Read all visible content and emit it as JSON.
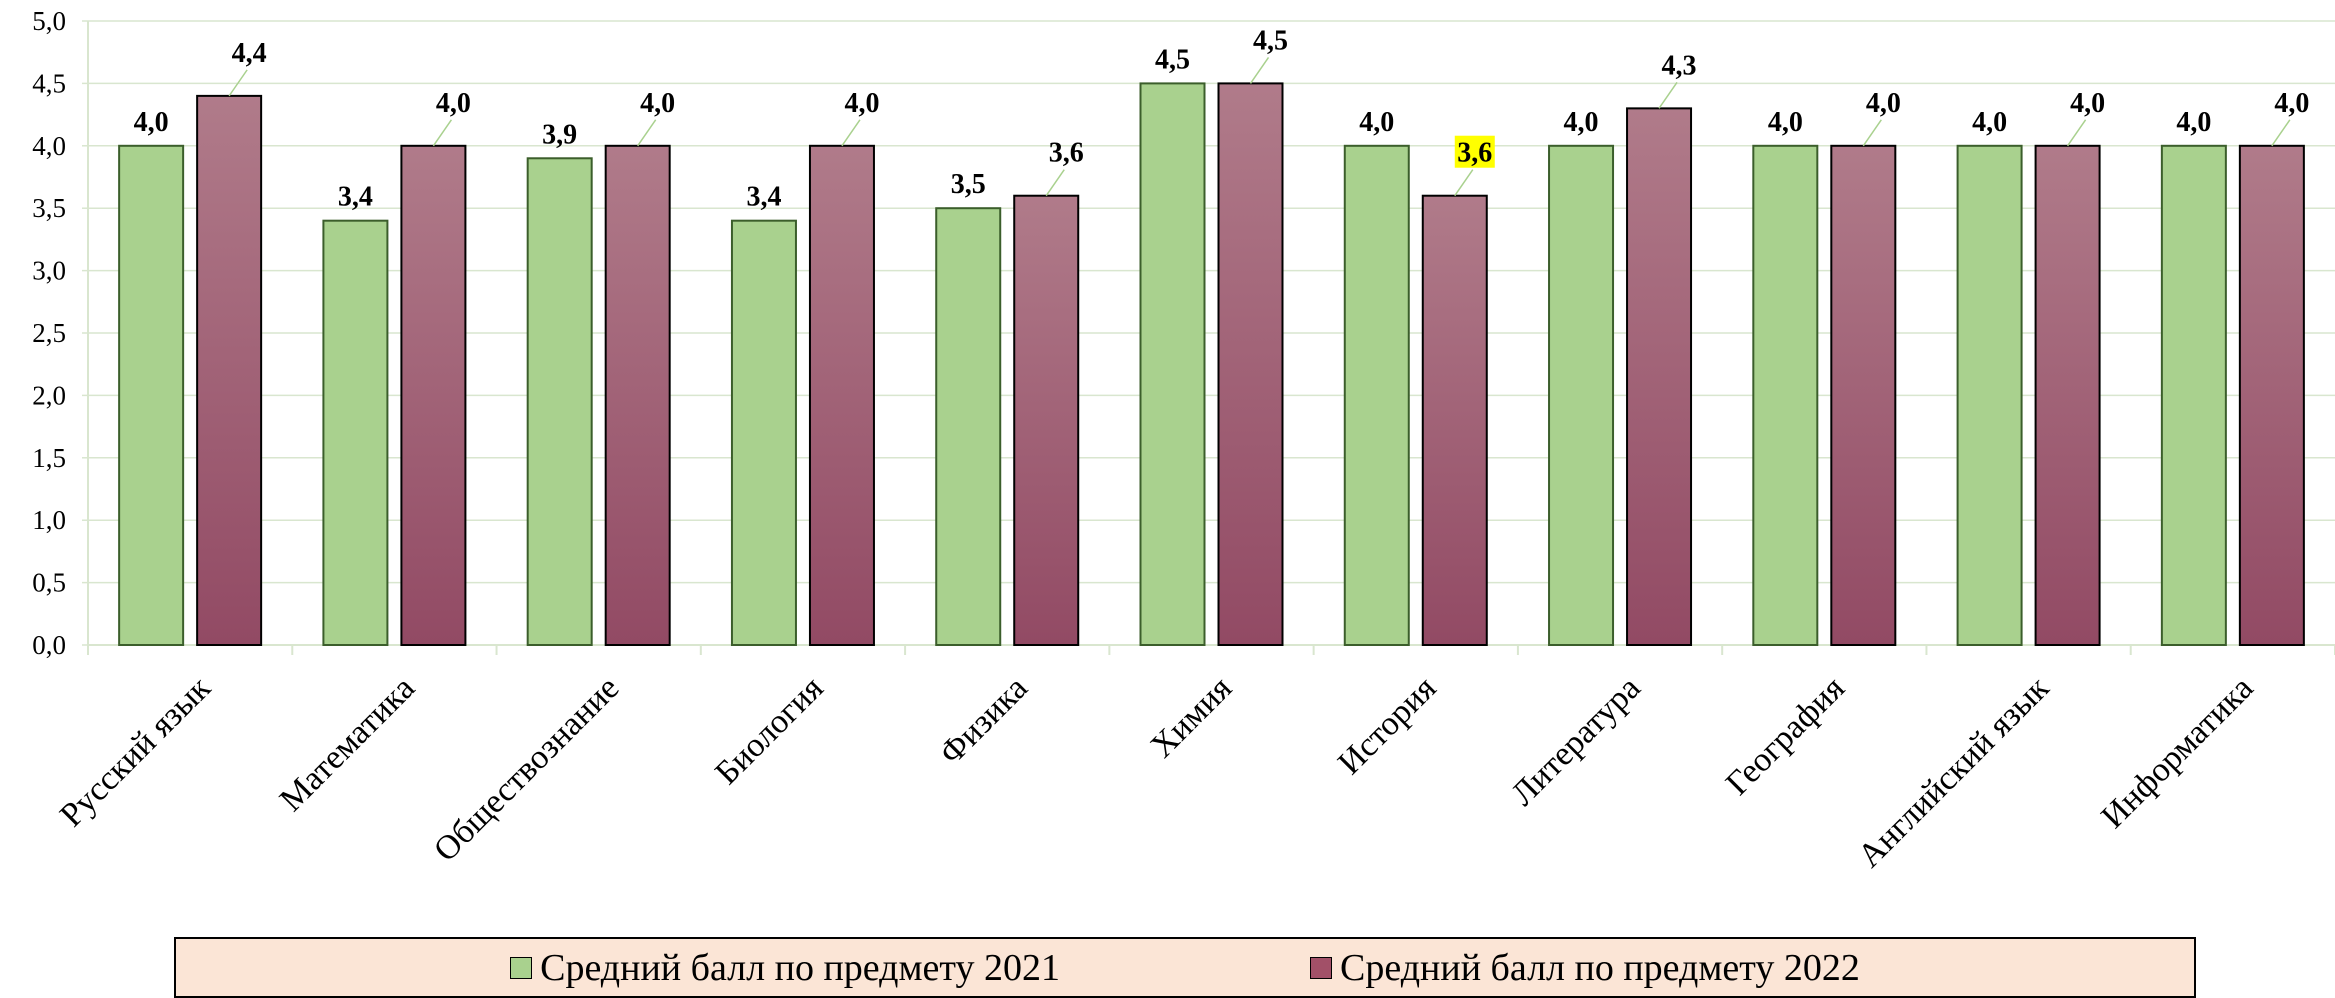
{
  "chart_data": {
    "type": "bar",
    "categories": [
      "Русский язык",
      "Математика",
      "Обществознание",
      "Биология",
      "Физика",
      "Химия",
      "История",
      "Литература",
      "География",
      "Английский язык",
      "Информатика"
    ],
    "series": [
      {
        "name": "Средний балл  по предмету 2021",
        "values": [
          4.0,
          3.4,
          3.9,
          3.4,
          3.5,
          4.5,
          4.0,
          4.0,
          4.0,
          4.0,
          4.0
        ],
        "color": "#a9d18e"
      },
      {
        "name": "Средний балл  по предмету 2022",
        "values": [
          4.4,
          4.0,
          4.0,
          4.0,
          3.6,
          4.5,
          3.6,
          4.3,
          4.0,
          4.0,
          4.0
        ],
        "color": "#a25068"
      }
    ],
    "data_labels": [
      [
        "4,0",
        "3,4",
        "3,9",
        "3,4",
        "3,5",
        "4,5",
        "4,0",
        "4,0",
        "4,0",
        "4,0",
        "4,0"
      ],
      [
        "4,4",
        "4,0",
        "4,0",
        "4,0",
        "3,6",
        "4,5",
        "3,6",
        "4,3",
        "4,0",
        "4,0",
        "4,0"
      ]
    ],
    "highlighted_label": {
      "series": 1,
      "category": 6,
      "color": "#ffff00"
    },
    "ylim": [
      0,
      5
    ],
    "yticks": [
      "0,0",
      "0,5",
      "1,0",
      "1,5",
      "2,0",
      "2,5",
      "3,0",
      "3,5",
      "4,0",
      "4,5",
      "5,0"
    ],
    "grid": true,
    "legend_position": "bottom"
  },
  "legend": {
    "items": [
      {
        "label": "Средний балл  по предмету 2021",
        "color": "#a9d18e"
      },
      {
        "label": "Средний балл  по предмету 2022",
        "color": "#a25068"
      }
    ]
  }
}
